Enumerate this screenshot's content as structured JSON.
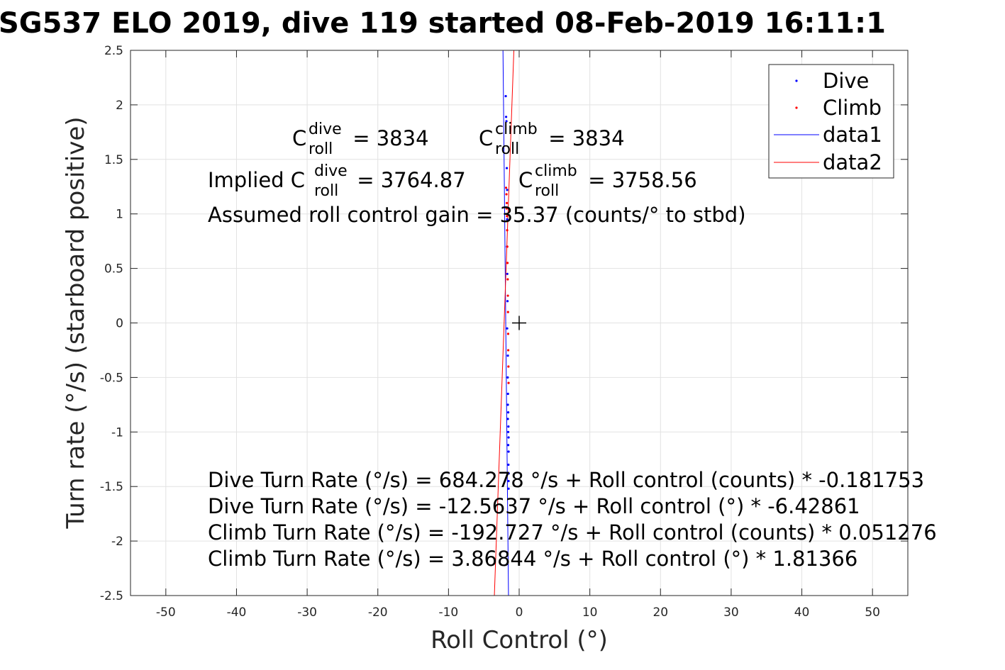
{
  "chart_data": {
    "type": "scatter",
    "title": "SG537 ELO 2019, dive 119 started 08-Feb-2019 16:11:1",
    "xlabel": "Roll Control (°)",
    "ylabel": "Turn rate (°/s) (starboard positive)",
    "xlim": [
      -55,
      55
    ],
    "ylim": [
      -2.5,
      2.5
    ],
    "xticks": [
      -50,
      -40,
      -30,
      -20,
      -10,
      0,
      10,
      20,
      30,
      40,
      50
    ],
    "yticks": [
      -2.5,
      -2,
      -1.5,
      -1,
      -0.5,
      0,
      0.5,
      1,
      1.5,
      2,
      2.5
    ],
    "xtick_labels": [
      "-50",
      "-40",
      "-30",
      "-20",
      "-10",
      "0",
      "10",
      "20",
      "30",
      "40",
      "50"
    ],
    "ytick_labels": [
      "-2.5",
      "-2",
      "-1.5",
      "-1",
      "-0.5",
      "0",
      "0.5",
      "1",
      "1.5",
      "2",
      "2.5"
    ],
    "grid": true,
    "legend_position": "top-right",
    "series": [
      {
        "name": "Dive",
        "kind": "points",
        "color": "#0000ff",
        "x": [
          -1.9,
          -1.85,
          -1.8,
          -1.75,
          -1.7,
          -1.7,
          -1.72,
          -1.68,
          -1.65,
          -1.7,
          -1.6,
          -1.62,
          -1.58,
          -1.6,
          -1.55,
          -1.6,
          -1.52,
          -1.55,
          -1.5,
          -1.55,
          -1.5,
          -1.52,
          -1.48,
          -1.5,
          -1.5
        ],
        "y": [
          2.08,
          1.89,
          1.85,
          1.42,
          1.22,
          0.95,
          0.7,
          0.45,
          0.2,
          -0.05,
          -0.3,
          -0.5,
          -0.65,
          -0.75,
          -0.82,
          -0.88,
          -0.95,
          -1.0,
          -1.05,
          -1.12,
          -1.18,
          -1.3,
          -1.38,
          -1.45,
          -1.52
        ]
      },
      {
        "name": "Climb",
        "kind": "points",
        "color": "#ff0000",
        "x": [
          -1.85,
          -1.8,
          -1.75,
          -1.78,
          -1.72,
          -1.7,
          -1.68,
          -1.65,
          -1.62,
          -1.6,
          -1.58,
          -1.56,
          -1.55,
          -1.52,
          -1.5
        ],
        "y": [
          1.24,
          1.18,
          1.1,
          1.05,
          0.98,
          0.85,
          0.7,
          0.55,
          0.4,
          0.25,
          0.1,
          -0.1,
          -0.25,
          -0.4,
          -0.55
        ]
      },
      {
        "name": "data1",
        "kind": "line",
        "color": "#0000ff",
        "x": [
          -2.29,
          -1.51
        ],
        "y": [
          2.5,
          -2.5
        ]
      },
      {
        "name": "data2",
        "kind": "line",
        "color": "#ff0000",
        "x": [
          -3.51,
          -0.75
        ],
        "y": [
          -2.5,
          2.5
        ]
      }
    ],
    "marker": {
      "symbol": "+",
      "x": 0,
      "y": 0
    },
    "annotations": {
      "c_dive_prefix": "C",
      "c_dive_sup": "dive",
      "c_dive_sub": "roll",
      "c_dive_value": " = 3834",
      "c_climb_prefix": "C",
      "c_climb_sup": "climb",
      "c_climb_sub": "roll",
      "c_climb_value": " = 3834",
      "implied_prefix": "Implied C",
      "implied_dive_sup": "dive",
      "implied_dive_sub": "roll",
      "implied_dive_value": " = 3764.87",
      "implied_climb_prefix": "C",
      "implied_climb_sup": "climb",
      "implied_climb_sub": "roll",
      "implied_climb_value": " = 3758.56",
      "gain_line": "Assumed roll control gain = 35.37 (counts/° to stbd)",
      "fit_lines": [
        "Dive Turn Rate (°/s) = 684.278 °/s + Roll control (counts) * -0.181753",
        "Dive Turn Rate (°/s) = -12.5637 °/s + Roll control (°) * -6.42861",
        "Climb Turn Rate (°/s) = -192.727 °/s + Roll control (counts) * 0.051276",
        "Climb Turn Rate (°/s) = 3.86844 °/s + Roll control (°) * 1.81366"
      ]
    }
  }
}
